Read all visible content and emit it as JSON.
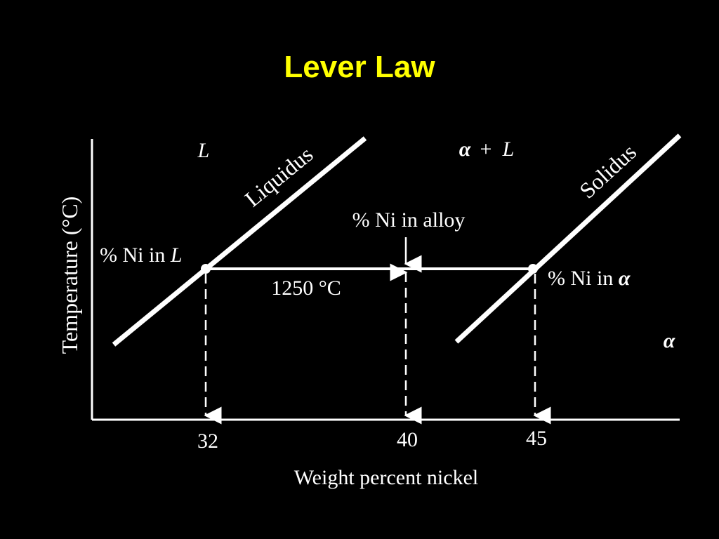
{
  "slide": {
    "title": "Lever Law",
    "title_color": "#FFFF00",
    "background": "#000000",
    "foreground": "#FFFFFF"
  },
  "diagram": {
    "y_axis_label": "Temperature (°C)",
    "x_axis_label": "Weight percent nickel",
    "region_liquid": "L",
    "region_two_phase_alpha": "α",
    "region_two_phase_plus": "+",
    "region_two_phase_L": "L",
    "region_solid": "α",
    "liquidus_label": "Liquidus",
    "solidus_label": "Solidus",
    "alloy_label": "% Ni in alloy",
    "liquid_comp_label_prefix": "% Ni in ",
    "liquid_comp_label_symbol": "L",
    "solid_comp_label_prefix": "% Ni in ",
    "solid_comp_label_symbol": "α",
    "tie_line_temperature": "1250 °C",
    "tick_liquid": "32",
    "tick_alloy": "40",
    "tick_solid": "45"
  }
}
